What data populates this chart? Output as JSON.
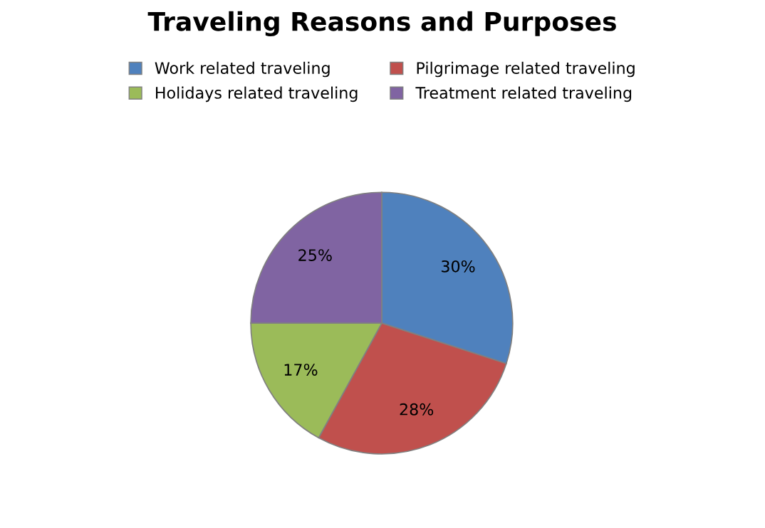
{
  "chart_data": {
    "type": "pie",
    "title": "Traveling Reasons and Purposes",
    "categories": [
      "Work related traveling",
      "Pilgrimage related traveling",
      "Holidays related traveling",
      "Treatment related traveling"
    ],
    "values": [
      30,
      28,
      17,
      25
    ],
    "colors": [
      "#4f81bd",
      "#c0504d",
      "#9bbb59",
      "#8064a2"
    ],
    "value_labels": [
      "30%",
      "28%",
      "17%",
      "25%"
    ],
    "legend": "top"
  }
}
